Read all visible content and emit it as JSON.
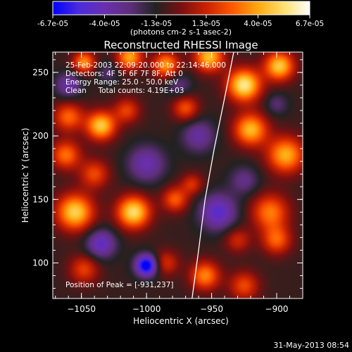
{
  "chart_data": {
    "type": "heatmap",
    "title": "Reconstructed RHESSI Image",
    "xlabel": "Heliocentric X (arcsec)",
    "ylabel": "Heliocentric Y (arcsec)",
    "xlim": [
      -1072,
      -880
    ],
    "ylim": [
      72,
      266
    ],
    "x_ticks": [
      -1050,
      -1000,
      -950,
      -900
    ],
    "y_ticks": [
      100,
      150,
      200,
      250
    ],
    "colorbar": {
      "label": "(photons cm-2 s-1 asec-2)",
      "range": [
        -6.7e-05,
        6.7e-05
      ],
      "tick_values": [
        -6.7e-05,
        -4e-05,
        -1.3e-05,
        1.3e-05,
        4e-05,
        6.7e-05
      ],
      "tick_labels": [
        "-6.7e-05",
        "-4.0e-05",
        "-1.3e-05",
        "1.3e-05",
        "4.0e-05",
        "6.7e-05"
      ],
      "colors": [
        "#0000ff",
        "#4b2bdc",
        "#6a2fb0",
        "#5e2f7a",
        "#222222",
        "#7a1010",
        "#cc2200",
        "#ff5a00",
        "#ffaa10",
        "#ffe070",
        "#ffffff"
      ]
    },
    "info_lines": [
      "25-Feb-2003 22:09:20.000 to 22:14:46.000",
      "Detectors: 4F 5F 6F 7F 8F, Att 0",
      "Energy Range: 25.0 - 50.0 keV",
      "Clean     Total counts: 4.19E+03"
    ],
    "peak_label": "Position of Peak = [-931,237]",
    "limb_curve": [
      [
        -965,
        72
      ],
      [
        -960,
        110
      ],
      [
        -955,
        150
      ],
      [
        -948,
        190
      ],
      [
        -940,
        230
      ],
      [
        -933,
        266
      ]
    ],
    "components": [
      {
        "x": -1048,
        "y": 258,
        "amp": 4.6e-05,
        "sigma": 6
      },
      {
        "x": -1013,
        "y": 262,
        "amp": 5e-05,
        "sigma": 7
      },
      {
        "x": -985,
        "y": 256,
        "amp": 4.8e-05,
        "sigma": 7
      },
      {
        "x": -952,
        "y": 262,
        "amp": 5.5e-05,
        "sigma": 8
      },
      {
        "x": -925,
        "y": 240,
        "amp": 6.7e-05,
        "sigma": 9
      },
      {
        "x": -898,
        "y": 255,
        "amp": 5.8e-05,
        "sigma": 8
      },
      {
        "x": -1060,
        "y": 215,
        "amp": 3.8e-05,
        "sigma": 8
      },
      {
        "x": -1035,
        "y": 208,
        "amp": 5.8e-05,
        "sigma": 8
      },
      {
        "x": -1015,
        "y": 220,
        "amp": 3e-05,
        "sigma": 7
      },
      {
        "x": -970,
        "y": 222,
        "amp": 3.4e-05,
        "sigma": 7
      },
      {
        "x": -920,
        "y": 205,
        "amp": 5.4e-05,
        "sigma": 9
      },
      {
        "x": -893,
        "y": 185,
        "amp": 5.2e-05,
        "sigma": 10
      },
      {
        "x": -1062,
        "y": 185,
        "amp": 4e-05,
        "sigma": 8
      },
      {
        "x": -1040,
        "y": 170,
        "amp": 3.2e-05,
        "sigma": 8
      },
      {
        "x": -1055,
        "y": 140,
        "amp": 6e-05,
        "sigma": 10
      },
      {
        "x": -1010,
        "y": 140,
        "amp": 6.3e-05,
        "sigma": 9
      },
      {
        "x": -978,
        "y": 150,
        "amp": 3.6e-05,
        "sigma": 7
      },
      {
        "x": -965,
        "y": 162,
        "amp": 2.6e-05,
        "sigma": 6
      },
      {
        "x": -905,
        "y": 140,
        "amp": 4.2e-05,
        "sigma": 10
      },
      {
        "x": -900,
        "y": 118,
        "amp": 3.6e-05,
        "sigma": 8
      },
      {
        "x": -930,
        "y": 118,
        "amp": 2.4e-05,
        "sigma": 7
      },
      {
        "x": -1048,
        "y": 95,
        "amp": 3e-05,
        "sigma": 8
      },
      {
        "x": -955,
        "y": 90,
        "amp": 4.4e-05,
        "sigma": 8
      },
      {
        "x": -985,
        "y": 100,
        "amp": 2.6e-05,
        "sigma": 7
      },
      {
        "x": -925,
        "y": 82,
        "amp": 3.2e-05,
        "sigma": 8
      },
      {
        "x": -1000,
        "y": 98,
        "amp": -6.4e-05,
        "sigma": 6
      },
      {
        "x": -1035,
        "y": 115,
        "amp": -3.6e-05,
        "sigma": 8
      },
      {
        "x": -945,
        "y": 140,
        "amp": -3.8e-05,
        "sigma": 10
      },
      {
        "x": -1000,
        "y": 178,
        "amp": -3e-05,
        "sigma": 10
      },
      {
        "x": -1060,
        "y": 240,
        "amp": -2.8e-05,
        "sigma": 7
      },
      {
        "x": -960,
        "y": 200,
        "amp": -2.6e-05,
        "sigma": 9
      },
      {
        "x": -900,
        "y": 225,
        "amp": -1.6e-05,
        "sigma": 6
      },
      {
        "x": -925,
        "y": 165,
        "amp": -2e-05,
        "sigma": 8
      },
      {
        "x": -1030,
        "y": 250,
        "amp": -1.5e-05,
        "sigma": 6
      },
      {
        "x": -975,
        "y": 240,
        "amp": -1.8e-05,
        "sigma": 7
      }
    ],
    "base_level": -1e-05,
    "grid": false,
    "legend": "none"
  },
  "footer": {
    "timestamp": "31-May-2013 08:54"
  }
}
